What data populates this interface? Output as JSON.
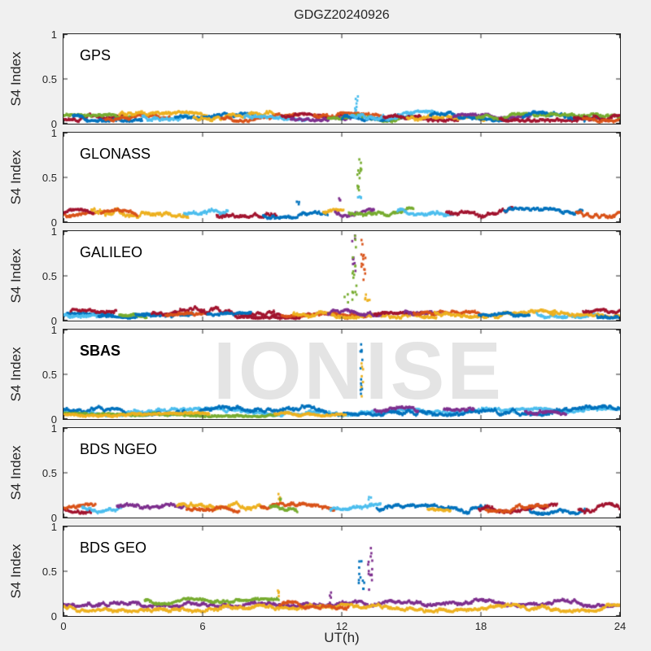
{
  "figure": {
    "title": "GDGZ20240926",
    "xlabel": "UT(h)",
    "ylabel": "S4 Index",
    "watermark": "IONISE",
    "background_color": "#f0f0f0",
    "axes_color": "#262626"
  },
  "palette": {
    "blue": "#0072BD",
    "orange": "#D95319",
    "yellow": "#EDB120",
    "purple": "#7E2F8E",
    "green": "#77AC30",
    "cyan": "#4DBEEE",
    "red": "#A2142F"
  },
  "chart_data": {
    "type": "scatter",
    "title": "GDGZ20240926",
    "xlabel": "UT(h)",
    "ylabel": "S4 Index",
    "xlim": [
      0,
      24
    ],
    "ylim": [
      0,
      1
    ],
    "xticks": [
      0,
      6,
      12,
      18,
      24
    ],
    "xtick_labels": [
      "0",
      "6",
      "12",
      "18",
      "24"
    ],
    "yticks": [
      0,
      0.5,
      1
    ],
    "ytick_labels": [
      "0",
      "0.5",
      "1"
    ],
    "grid": false,
    "watermark": {
      "text": "IONISE",
      "panel_index": 3
    },
    "panels": [
      {
        "label": "GPS",
        "bold": false,
        "noise_band_range": [
          0.03,
          0.15
        ],
        "noise_segments": [
          [
            0,
            2.6,
            "red",
            0.06,
            0.045
          ],
          [
            0,
            3.0,
            "green",
            0.07,
            0.035
          ],
          [
            0.4,
            3.4,
            "blue",
            0.075,
            0.045
          ],
          [
            1.8,
            4.6,
            "orange",
            0.06,
            0.04
          ],
          [
            2.4,
            6.2,
            "yellow",
            0.08,
            0.05
          ],
          [
            3.4,
            5.6,
            "cyan",
            0.09,
            0.05
          ],
          [
            4.8,
            8.2,
            "blue",
            0.07,
            0.045
          ],
          [
            5.6,
            9.2,
            "yellow",
            0.085,
            0.05
          ],
          [
            6.8,
            10.2,
            "orange",
            0.065,
            0.04
          ],
          [
            7.8,
            10.6,
            "cyan",
            0.08,
            0.045
          ],
          [
            9.4,
            12.2,
            "red",
            0.07,
            0.04
          ],
          [
            9.8,
            12.4,
            "purple",
            0.07,
            0.035
          ],
          [
            10.8,
            14.2,
            "orange",
            0.075,
            0.045
          ],
          [
            11.4,
            14.6,
            "green",
            0.06,
            0.035
          ],
          [
            12.0,
            15.4,
            "blue",
            0.085,
            0.05
          ],
          [
            12.4,
            16.2,
            "cyan",
            0.09,
            0.05
          ],
          [
            13.8,
            17.2,
            "red",
            0.07,
            0.04
          ],
          [
            14.8,
            18.2,
            "yellow",
            0.08,
            0.045
          ],
          [
            15.8,
            19.2,
            "blue",
            0.08,
            0.045
          ],
          [
            16.8,
            20.2,
            "purple",
            0.07,
            0.035
          ],
          [
            17.8,
            21.2,
            "green",
            0.07,
            0.04
          ],
          [
            18.8,
            22.2,
            "red",
            0.07,
            0.04
          ],
          [
            19.8,
            23.2,
            "blue",
            0.08,
            0.05
          ],
          [
            20.8,
            24,
            "green",
            0.07,
            0.04
          ],
          [
            22.0,
            24,
            "red",
            0.085,
            0.05
          ],
          [
            22.4,
            24,
            "orange",
            0.06,
            0.035
          ]
        ],
        "spikes": [
          [
            12.68,
            "cyan",
            0.14,
            0.31,
            8,
            0.12
          ]
        ]
      },
      {
        "label": "GLONASS",
        "bold": false,
        "noise_band_range": [
          0.05,
          0.2
        ],
        "noise_segments": [
          [
            0,
            1.5,
            "orange",
            0.1,
            0.05
          ],
          [
            0,
            1.3,
            "red",
            0.09,
            0.05
          ],
          [
            1.2,
            5.4,
            "yellow",
            0.115,
            0.06
          ],
          [
            1.6,
            3.2,
            "orange",
            0.1,
            0.045
          ],
          [
            5.2,
            7.1,
            "cyan",
            0.1,
            0.05
          ],
          [
            6.6,
            9.2,
            "red",
            0.105,
            0.055
          ],
          [
            8.6,
            11.4,
            "blue",
            0.1,
            0.055
          ],
          [
            11.2,
            12.1,
            "yellow",
            0.1,
            0.04
          ],
          [
            11.7,
            13.4,
            "purple",
            0.1,
            0.05
          ],
          [
            12.3,
            15.1,
            "green",
            0.105,
            0.05
          ],
          [
            14.4,
            16.8,
            "cyan",
            0.105,
            0.05
          ],
          [
            16.5,
            19.4,
            "red",
            0.105,
            0.055
          ],
          [
            19.0,
            22.4,
            "blue",
            0.1,
            0.055
          ],
          [
            22.1,
            24,
            "orange",
            0.105,
            0.05
          ]
        ],
        "spikes": [
          [
            12.75,
            "green",
            0.3,
            0.72,
            13,
            0.1
          ],
          [
            12.8,
            "cyan",
            0.2,
            0.3,
            5,
            0.12
          ],
          [
            10.15,
            "blue",
            0.2,
            0.26,
            3,
            0.1
          ],
          [
            11.9,
            "purple",
            0.22,
            0.3,
            3,
            0.08
          ]
        ]
      },
      {
        "label": "GALILEO",
        "bold": false,
        "noise_band_range": [
          0.03,
          0.2
        ],
        "noise_segments": [
          [
            0,
            2.1,
            "blue",
            0.05,
            0.03
          ],
          [
            0,
            1.6,
            "cyan",
            0.06,
            0.03
          ],
          [
            0.3,
            2.3,
            "red",
            0.095,
            0.04
          ],
          [
            1.5,
            4.2,
            "blue",
            0.05,
            0.025
          ],
          [
            2.4,
            3.6,
            "green",
            0.06,
            0.03
          ],
          [
            3.1,
            5.6,
            "blue",
            0.06,
            0.03
          ],
          [
            3.8,
            6.1,
            "red",
            0.11,
            0.05
          ],
          [
            4.4,
            6.3,
            "orange",
            0.07,
            0.03
          ],
          [
            5.9,
            9.1,
            "red",
            0.115,
            0.06
          ],
          [
            6.2,
            8.1,
            "blue",
            0.06,
            0.03
          ],
          [
            7.4,
            10.2,
            "red",
            0.045,
            0.02
          ],
          [
            9.0,
            12.3,
            "red",
            0.05,
            0.03
          ],
          [
            9.4,
            13.2,
            "orange",
            0.06,
            0.03
          ],
          [
            9.9,
            16.1,
            "yellow",
            0.075,
            0.045
          ],
          [
            11.4,
            13.7,
            "purple",
            0.085,
            0.04
          ],
          [
            13.4,
            16.1,
            "red",
            0.06,
            0.03
          ],
          [
            14.7,
            16.3,
            "purple",
            0.1,
            0.04
          ],
          [
            15.1,
            18.2,
            "orange",
            0.07,
            0.035
          ],
          [
            16.0,
            21.2,
            "yellow",
            0.075,
            0.04
          ],
          [
            17.9,
            20.1,
            "blue",
            0.06,
            0.03
          ],
          [
            20.4,
            23.1,
            "cyan",
            0.07,
            0.035
          ],
          [
            21.0,
            24,
            "yellow",
            0.07,
            0.035
          ],
          [
            22.4,
            24,
            "red",
            0.085,
            0.04
          ],
          [
            23.0,
            24,
            "blue",
            0.06,
            0.03
          ]
        ],
        "spikes": [
          [
            12.5,
            "purple",
            0.55,
            1.0,
            9,
            0.09
          ],
          [
            12.55,
            "green",
            0.22,
            0.96,
            16,
            0.1
          ],
          [
            12.9,
            "orange",
            0.45,
            1.0,
            14,
            0.12
          ],
          [
            13.1,
            "yellow",
            0.18,
            0.3,
            6,
            0.1
          ],
          [
            12.2,
            "green",
            0.2,
            0.3,
            3,
            0.08
          ]
        ]
      },
      {
        "label": "SBAS",
        "bold": true,
        "noise_band_range": [
          0.03,
          0.15
        ],
        "noise_segments": [
          [
            0,
            24,
            "cyan",
            0.08,
            0.04
          ],
          [
            0,
            24,
            "blue",
            0.095,
            0.05
          ],
          [
            0,
            9.2,
            "green",
            0.05,
            0.02
          ],
          [
            0,
            6.3,
            "yellow",
            0.05,
            0.02
          ],
          [
            9.1,
            12.2,
            "yellow",
            0.05,
            0.02
          ],
          [
            13.4,
            15.3,
            "purple",
            0.095,
            0.04
          ],
          [
            16.4,
            17.7,
            "purple",
            0.095,
            0.04
          ],
          [
            19.9,
            21.7,
            "purple",
            0.095,
            0.04
          ]
        ],
        "spikes": [
          [
            12.85,
            "blue",
            0.2,
            0.87,
            12,
            0.05
          ],
          [
            12.87,
            "yellow",
            0.25,
            0.65,
            7,
            0.05
          ]
        ]
      },
      {
        "label": "BDS NGEO",
        "bold": false,
        "noise_band_range": [
          0.04,
          0.2
        ],
        "noise_segments": [
          [
            0,
            1.2,
            "red",
            0.1,
            0.05
          ],
          [
            0,
            1.4,
            "orange",
            0.11,
            0.045
          ],
          [
            0.8,
            2.5,
            "cyan",
            0.095,
            0.045
          ],
          [
            2.3,
            5.3,
            "purple",
            0.105,
            0.05
          ],
          [
            4.9,
            8.7,
            "yellow",
            0.115,
            0.06
          ],
          [
            5.3,
            7.6,
            "orange",
            0.1,
            0.045
          ],
          [
            8.5,
            11.7,
            "orange",
            0.11,
            0.05
          ],
          [
            8.9,
            10.1,
            "green",
            0.1,
            0.04
          ],
          [
            11.5,
            13.7,
            "cyan",
            0.1,
            0.05
          ],
          [
            13.5,
            18.3,
            "blue",
            0.09,
            0.05
          ],
          [
            15.7,
            16.7,
            "yellow",
            0.1,
            0.035
          ],
          [
            17.9,
            21.3,
            "red",
            0.105,
            0.05
          ],
          [
            18.2,
            20.9,
            "orange",
            0.1,
            0.045
          ],
          [
            20.1,
            22.5,
            "blue",
            0.09,
            0.05
          ],
          [
            22.2,
            24,
            "red",
            0.105,
            0.05
          ]
        ],
        "spikes": [
          [
            9.3,
            "yellow",
            0.17,
            0.28,
            4,
            0.05
          ],
          [
            9.35,
            "green",
            0.16,
            0.24,
            3,
            0.05
          ],
          [
            13.2,
            "cyan",
            0.18,
            0.24,
            3,
            0.08
          ]
        ]
      },
      {
        "label": "BDS GEO",
        "bold": false,
        "noise_band_range": [
          0.05,
          0.2
        ],
        "noise_segments": [
          [
            0,
            24,
            "purple",
            0.145,
            0.04
          ],
          [
            0,
            24,
            "yellow",
            0.09,
            0.04
          ],
          [
            3.5,
            9.3,
            "green",
            0.165,
            0.03
          ],
          [
            9.3,
            12.3,
            "orange",
            0.12,
            0.04
          ]
        ],
        "spikes": [
          [
            12.85,
            "blue",
            0.3,
            0.85,
            11,
            0.12
          ],
          [
            13.25,
            "purple",
            0.24,
            0.8,
            14,
            0.12
          ],
          [
            9.25,
            "yellow",
            0.18,
            0.3,
            4,
            0.05
          ],
          [
            11.5,
            "purple",
            0.2,
            0.27,
            3,
            0.06
          ]
        ]
      }
    ]
  }
}
